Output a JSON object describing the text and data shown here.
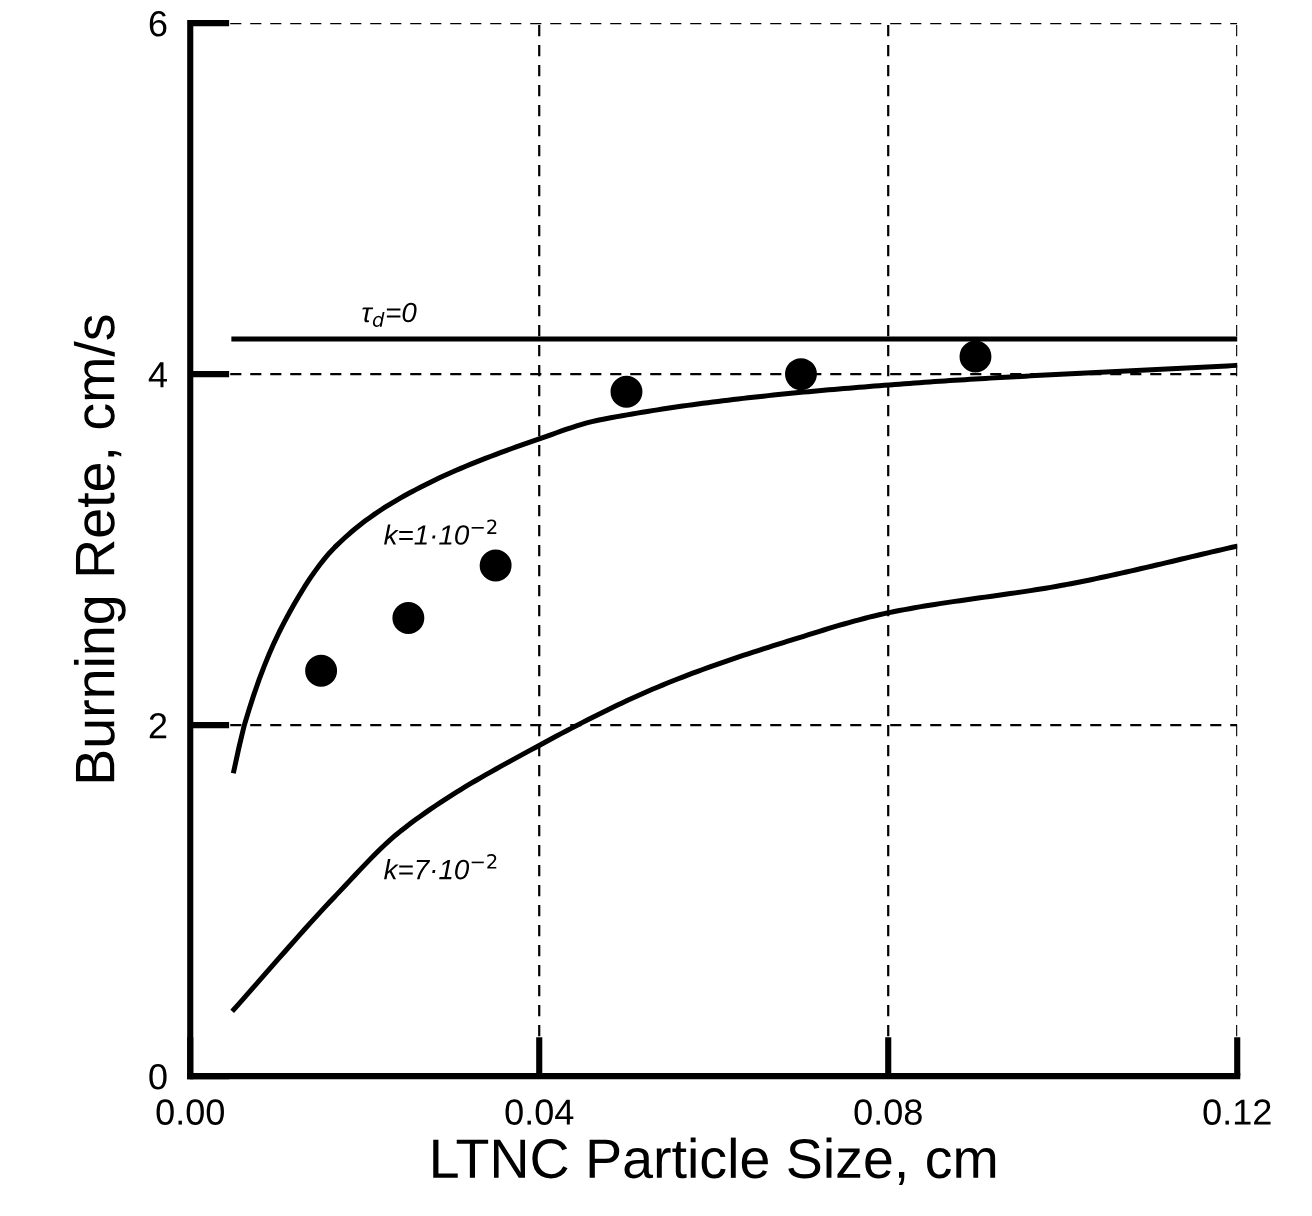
{
  "chart_data": {
    "type": "line",
    "xlabel": "LTNC Particle Size, cm",
    "ylabel": "Burning Rete, cm/s",
    "xlim": [
      0.0,
      0.12
    ],
    "ylim": [
      0,
      6
    ],
    "xticks": [
      {
        "value": 0.0,
        "label": "0.00"
      },
      0.04,
      0.08,
      0.12
    ],
    "yticks": [
      0,
      2,
      4,
      6
    ],
    "grid": true,
    "legend": false,
    "series": [
      {
        "type": "scatter",
        "color": "#000000",
        "marker": "circle",
        "x": [
          0.015,
          0.025,
          0.035,
          0.05,
          0.07,
          0.09
        ],
        "values": [
          2.31,
          2.61,
          2.91,
          3.9,
          4.0,
          4.1
        ]
      },
      {
        "name": "τ$_{d}$=0",
        "color": "#000000",
        "line_style": "solid",
        "x": [
          0.005,
          0.12
        ],
        "values": [
          4.2,
          4.2
        ]
      },
      {
        "name": "k=1·10$^{−2}$",
        "color": "#000000",
        "line_style": "solid",
        "x": [
          0.005,
          0.0062,
          0.0105,
          0.0167,
          0.0254,
          0.0405,
          0.047,
          0.0805,
          0.12
        ],
        "values": [
          1.74,
          2.0,
          2.56,
          3.02,
          3.33,
          3.64,
          3.74,
          3.94,
          4.05
        ]
      },
      {
        "name": "k=7·10$^{−2}$",
        "color": "#000000",
        "line_style": "solid",
        "x": [
          0.005,
          0.0167,
          0.0242,
          0.0402,
          0.0547,
          0.0686,
          0.08,
          0.1003,
          0.12
        ],
        "values": [
          0.38,
          1.03,
          1.4,
          1.89,
          2.24,
          2.48,
          2.64,
          2.8,
          3.02
        ]
      }
    ]
  }
}
